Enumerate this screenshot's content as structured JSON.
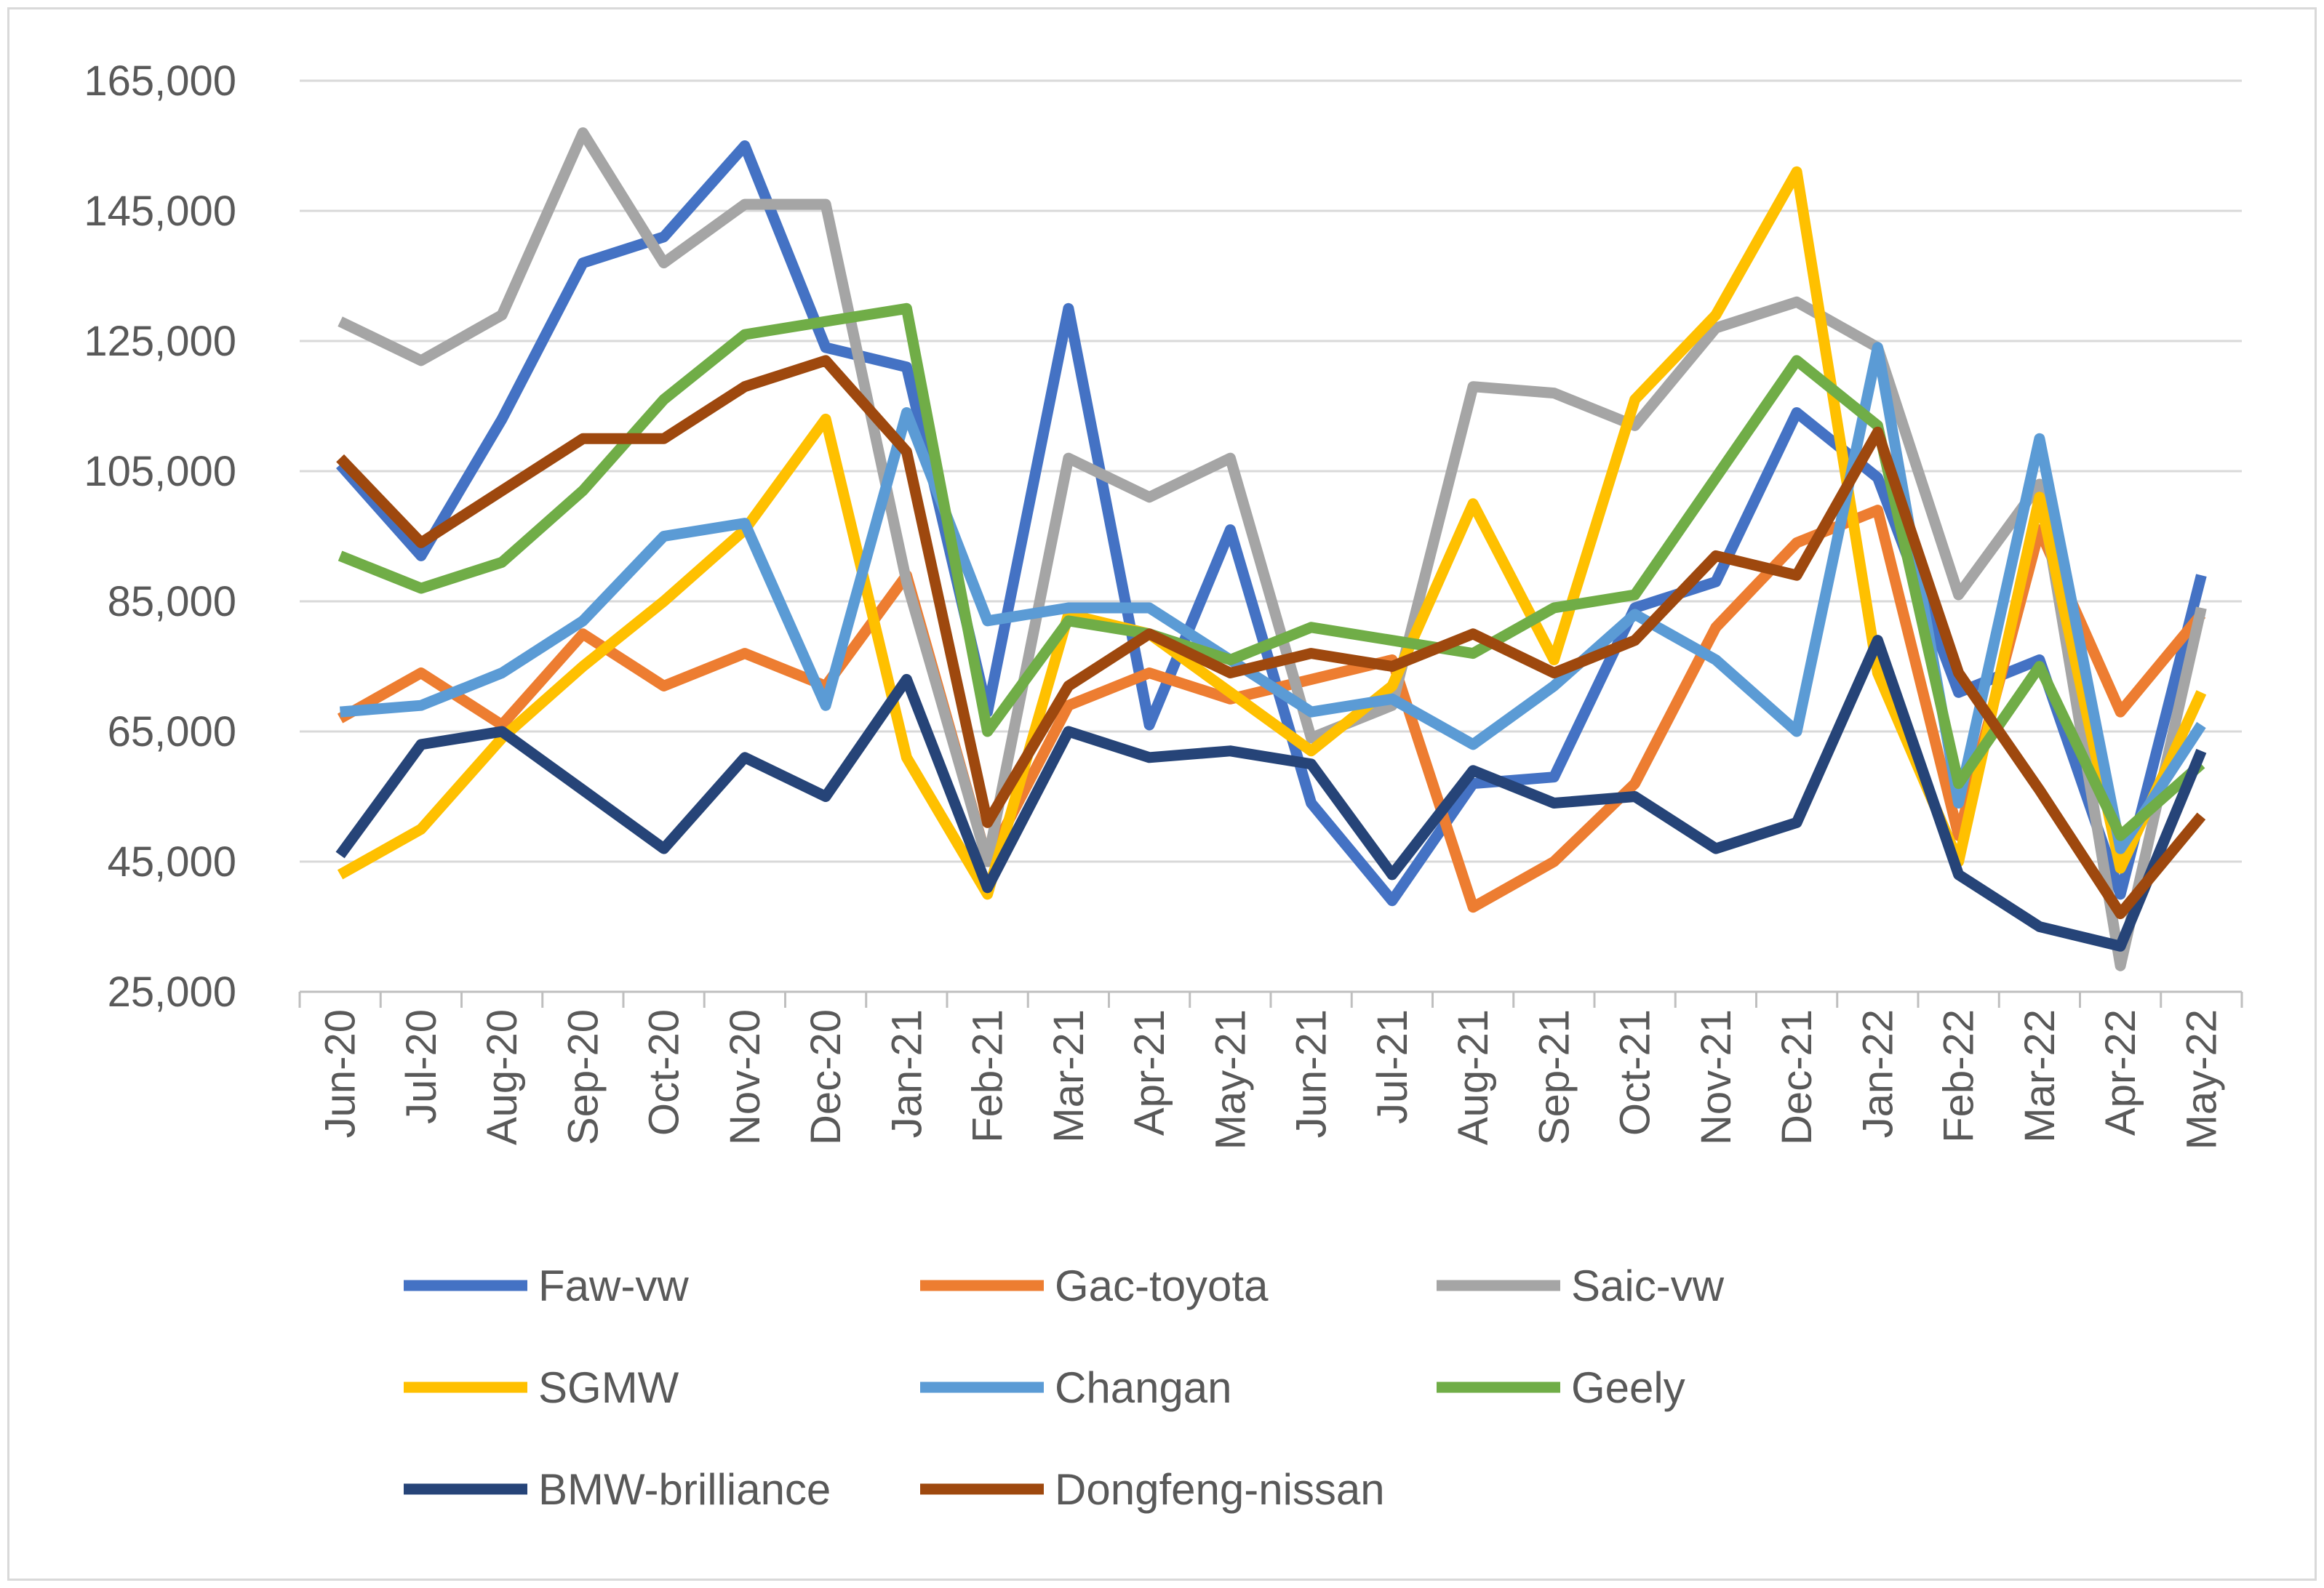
{
  "chart_data": {
    "type": "line",
    "title": "",
    "xlabel": "",
    "ylabel": "",
    "ylim": [
      25000,
      165000
    ],
    "yticks": [
      25000,
      45000,
      65000,
      85000,
      105000,
      125000,
      145000,
      165000
    ],
    "ytick_labels": [
      "25,000",
      "45,000",
      "65,000",
      "85,000",
      "105,000",
      "125,000",
      "145,000",
      "165,000"
    ],
    "grid": "horizontal",
    "legend_position": "bottom",
    "categories": [
      "Jun-20",
      "Jul-20",
      "Aug-20",
      "Sep-20",
      "Oct-20",
      "Nov-20",
      "Dec-20",
      "Jan-21",
      "Feb-21",
      "Mar-21",
      "Apr-21",
      "May-21",
      "Jun-21",
      "Jul-21",
      "Aug-21",
      "Sep-21",
      "Oct-21",
      "Nov-21",
      "Dec-21",
      "Jan-22",
      "Feb-22",
      "Mar-22",
      "Apr-22",
      "May-22"
    ],
    "series": [
      {
        "name": "Faw-vw",
        "color": "#4472C4",
        "values": [
          106000,
          92000,
          113000,
          137000,
          141000,
          155000,
          124000,
          121000,
          68000,
          130000,
          66000,
          96000,
          54000,
          39000,
          57000,
          58000,
          84000,
          88000,
          114000,
          104000,
          71000,
          76000,
          40000,
          89000
        ]
      },
      {
        "name": "Gac-toyota",
        "color": "#ED7D31",
        "values": [
          67000,
          74000,
          66000,
          80000,
          72000,
          77000,
          72000,
          89000,
          45000,
          69000,
          74000,
          70000,
          73000,
          76000,
          38000,
          45000,
          57000,
          81000,
          94000,
          99000,
          49000,
          96000,
          68000,
          83000
        ]
      },
      {
        "name": "Saic-vw",
        "color": "#A5A5A5",
        "values": [
          128000,
          122000,
          129000,
          157000,
          137000,
          146000,
          146000,
          88000,
          45000,
          107000,
          101000,
          107000,
          64000,
          69000,
          118000,
          117000,
          112000,
          127000,
          131000,
          124000,
          86000,
          103000,
          29000,
          84000
        ]
      },
      {
        "name": "SGMW",
        "color": "#FFC000",
        "values": [
          43000,
          50000,
          64000,
          75000,
          85000,
          96000,
          113000,
          61000,
          40000,
          83000,
          80000,
          71000,
          62000,
          72000,
          100000,
          76000,
          116000,
          129000,
          151000,
          74000,
          45000,
          101000,
          44000,
          71000
        ]
      },
      {
        "name": "Changan",
        "color": "#5B9BD5",
        "values": [
          68000,
          69000,
          74000,
          82000,
          95000,
          97000,
          69000,
          114000,
          82000,
          84000,
          84000,
          76000,
          68000,
          70000,
          63000,
          72000,
          83000,
          76000,
          65000,
          124000,
          54000,
          110000,
          47000,
          66000
        ]
      },
      {
        "name": "Geely",
        "color": "#70AD47",
        "values": [
          92000,
          87000,
          91000,
          102000,
          116000,
          126000,
          128000,
          130000,
          65000,
          82000,
          80000,
          76000,
          81000,
          79000,
          77000,
          84000,
          86000,
          104000,
          122000,
          112000,
          57000,
          75000,
          49000,
          60000
        ]
      },
      {
        "name": "BMW-brilliance",
        "color": "#264478",
        "values": [
          46000,
          63000,
          65000,
          56000,
          47000,
          61000,
          55000,
          73000,
          41000,
          65000,
          61000,
          62000,
          60000,
          43000,
          59000,
          54000,
          55000,
          47000,
          51000,
          79000,
          43000,
          35000,
          32000,
          62000
        ]
      },
      {
        "name": "Dongfeng-nissan",
        "color": "#9E480E",
        "values": [
          107000,
          94000,
          102000,
          110000,
          110000,
          118000,
          122000,
          108000,
          51000,
          72000,
          80000,
          74000,
          77000,
          75000,
          80000,
          74000,
          79000,
          92000,
          89000,
          111000,
          74000,
          56000,
          37000,
          52000
        ]
      }
    ]
  }
}
